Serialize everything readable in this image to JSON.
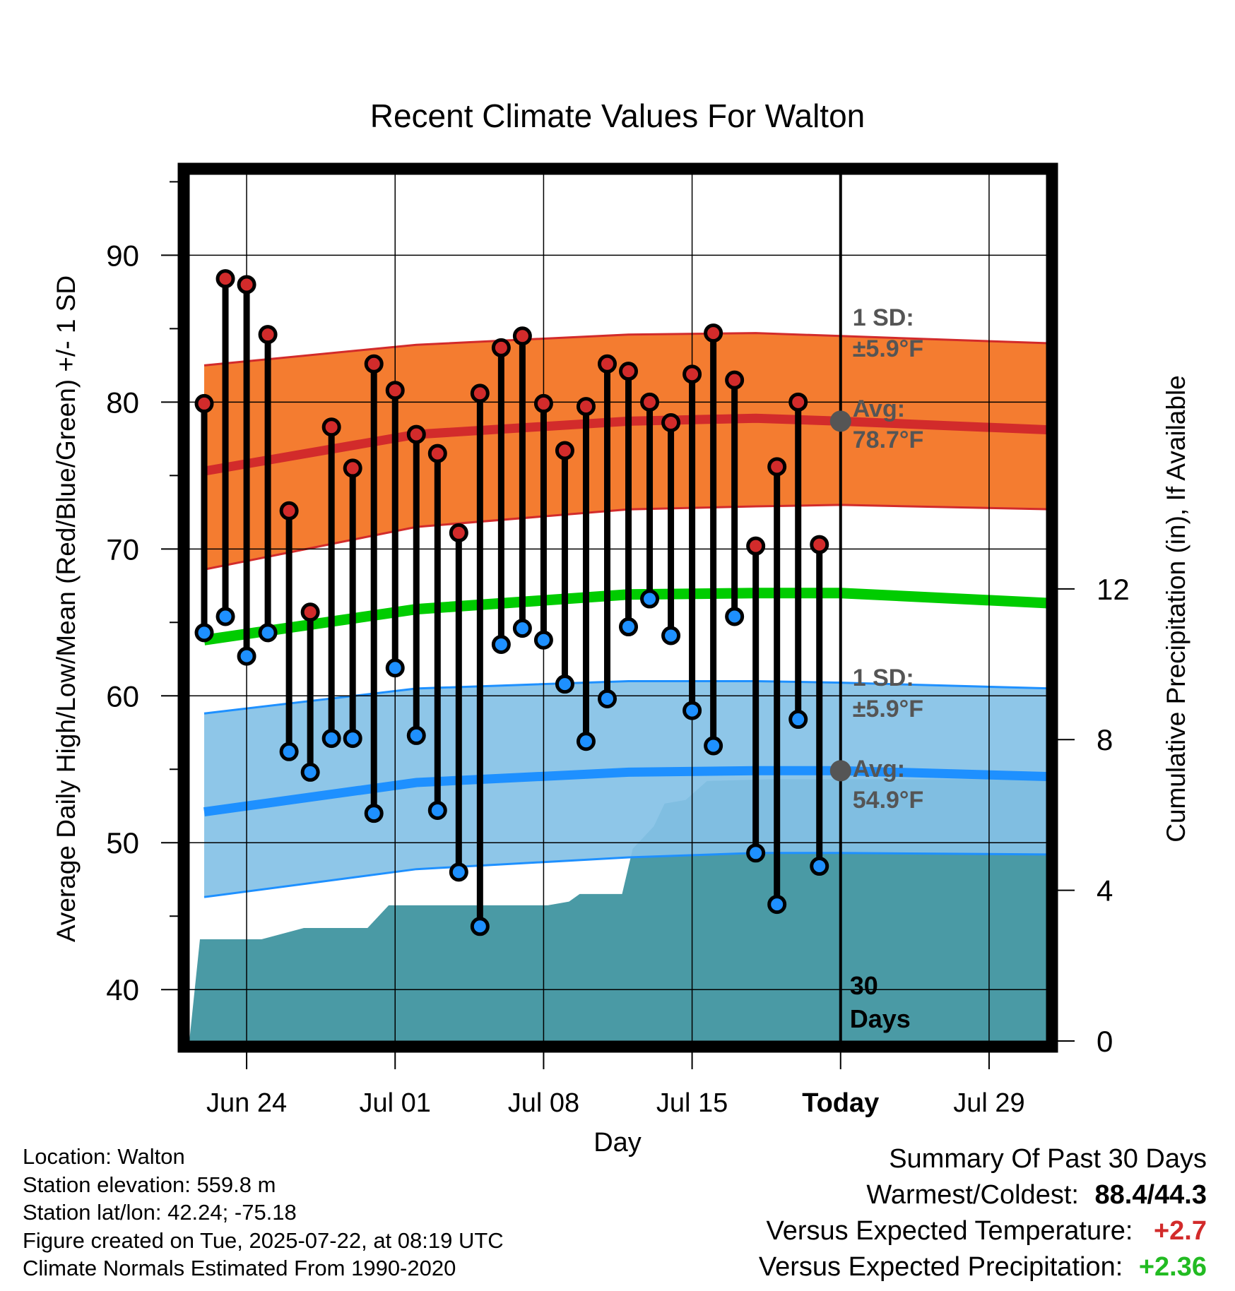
{
  "chart_data": {
    "type": "line",
    "title": "Recent Climate Values For Walton",
    "xlabel": "Day",
    "ylabel_left": "Average Daily High/Low/Mean (Red/Blue/Green) +/- 1 SD",
    "ylabel_right": "Cumulative Precipitation (in), If Available",
    "x_tick_labels": [
      "Jun 24",
      "Jul 01",
      "Jul 08",
      "Jul 15",
      "Today",
      "Jul 29"
    ],
    "x_tick_days": [
      2,
      9,
      16,
      23,
      30,
      37
    ],
    "xlim_days": [
      -0.7,
      39.7
    ],
    "ylim_left": [
      36.5,
      95.5
    ],
    "y_ticks_left": [
      40,
      50,
      60,
      70,
      80,
      90
    ],
    "ylim_right": [
      0,
      23
    ],
    "y_ticks_right": [
      0,
      4,
      8,
      12
    ],
    "grid": true,
    "today_day": 30,
    "today_label_line1": "30",
    "today_label_line2": "Days",
    "days": [
      0,
      1,
      2,
      3,
      4,
      5,
      6,
      7,
      8,
      9,
      10,
      11,
      12,
      13,
      14,
      15,
      16,
      17,
      18,
      19,
      20,
      21,
      22,
      23,
      24,
      25,
      26,
      27,
      28,
      29
    ],
    "daily_high": [
      79.9,
      88.4,
      88.0,
      84.6,
      72.6,
      65.7,
      78.3,
      75.5,
      82.6,
      80.8,
      77.8,
      76.5,
      71.1,
      80.6,
      83.7,
      84.5,
      79.9,
      76.7,
      79.7,
      82.6,
      82.1,
      80.0,
      78.6,
      81.9,
      84.7,
      81.5,
      70.2,
      75.6,
      80.0,
      70.3
    ],
    "daily_low": [
      64.3,
      65.4,
      62.7,
      64.3,
      56.2,
      54.8,
      57.1,
      57.1,
      52.0,
      61.9,
      57.3,
      52.2,
      48.0,
      44.3,
      63.5,
      64.6,
      63.8,
      60.8,
      56.9,
      59.8,
      64.7,
      66.6,
      64.1,
      59.0,
      56.6,
      65.4,
      49.3,
      45.8,
      58.4,
      48.4
    ],
    "normal_high_avg": [
      [
        0,
        75.3
      ],
      [
        10,
        77.8
      ],
      [
        20,
        78.7
      ],
      [
        26,
        78.9
      ],
      [
        30,
        78.7
      ],
      [
        40,
        78.1
      ]
    ],
    "normal_high_plus_sd": [
      [
        0,
        82.5
      ],
      [
        10,
        83.9
      ],
      [
        20,
        84.6
      ],
      [
        26,
        84.7
      ],
      [
        30,
        84.5
      ],
      [
        40,
        84.0
      ]
    ],
    "normal_high_minus_sd": [
      [
        0,
        68.6
      ],
      [
        10,
        71.5
      ],
      [
        20,
        72.7
      ],
      [
        26,
        72.9
      ],
      [
        30,
        73.0
      ],
      [
        40,
        72.7
      ]
    ],
    "normal_mean": [
      [
        0,
        63.8
      ],
      [
        10,
        65.9
      ],
      [
        20,
        66.9
      ],
      [
        26,
        67.0
      ],
      [
        30,
        67.0
      ],
      [
        40,
        66.3
      ]
    ],
    "normal_low_avg": [
      [
        0,
        52.1
      ],
      [
        10,
        54.1
      ],
      [
        20,
        54.8
      ],
      [
        26,
        54.9
      ],
      [
        30,
        54.9
      ],
      [
        40,
        54.5
      ]
    ],
    "normal_low_plus_sd": [
      [
        0,
        58.8
      ],
      [
        10,
        60.5
      ],
      [
        20,
        61.0
      ],
      [
        26,
        61.0
      ],
      [
        30,
        60.9
      ],
      [
        40,
        60.5
      ]
    ],
    "normal_low_minus_sd": [
      [
        0,
        46.3
      ],
      [
        10,
        48.2
      ],
      [
        20,
        49.0
      ],
      [
        24,
        49.2
      ],
      [
        26,
        49.3
      ],
      [
        30,
        49.3
      ],
      [
        40,
        49.2
      ]
    ],
    "cumulative_precip": [
      [
        -0.7,
        0
      ],
      [
        -0.2,
        2.7
      ],
      [
        2.7,
        2.7
      ],
      [
        4.7,
        3.0
      ],
      [
        7.7,
        3.0
      ],
      [
        8.7,
        3.6
      ],
      [
        16.2,
        3.6
      ],
      [
        17.2,
        3.7
      ],
      [
        17.7,
        3.9
      ],
      [
        19.7,
        3.9
      ],
      [
        20.2,
        5.1
      ],
      [
        21.2,
        5.7
      ],
      [
        21.7,
        6.3
      ],
      [
        22.7,
        6.4
      ],
      [
        23.7,
        6.9
      ],
      [
        26.7,
        6.95
      ],
      [
        39.7,
        6.95
      ]
    ],
    "annotations": {
      "high_sd_label_1": "1 SD:",
      "high_sd_label_2": "±5.9°F",
      "high_avg_label_1": "Avg:",
      "high_avg_label_2": "78.7°F",
      "low_sd_label_1": "1 SD:",
      "low_sd_label_2": "±5.9°F",
      "low_avg_label_1": "Avg:",
      "low_avg_label_2": "54.9°F",
      "high_avg_today": 78.7,
      "low_avg_today": 54.9
    },
    "colors": {
      "high_band": "#f47c30",
      "high_line": "#d22b2b",
      "mean_line": "#00cc00",
      "low_band": "#84c1e6",
      "low_line": "#1e90ff",
      "precip": "#4a9aa5",
      "high_dot": "#d22b2b",
      "low_dot": "#1e90ff",
      "annotation_text": "#555555"
    }
  },
  "info": {
    "location": "Location: Walton",
    "elevation": "Station elevation: 559.8 m",
    "latlon": "Station lat/lon: 42.24; -75.18",
    "created": "Figure created on Tue, 2025-07-22, at 08:19 UTC",
    "normals": "Climate Normals Estimated From 1990-2020"
  },
  "summary": {
    "heading": "Summary Of Past 30 Days",
    "warm_cold_label": "Warmest/Coldest:",
    "warm_cold_value": "88.4/44.3",
    "temp_label": "Versus Expected Temperature:",
    "temp_value": "+2.7",
    "temp_color": "#d22b2b",
    "precip_label": "Versus Expected Precipitation:",
    "precip_value": "+2.36",
    "precip_color": "#22bb22"
  }
}
